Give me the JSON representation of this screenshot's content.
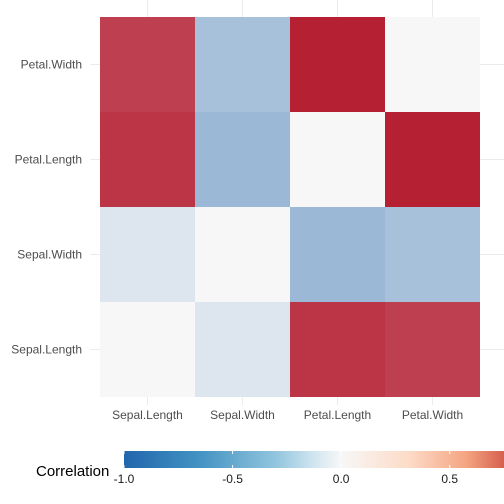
{
  "chart_data": {
    "type": "heatmap",
    "x_categories": [
      "Sepal.Length",
      "Sepal.Width",
      "Petal.Length",
      "Petal.Width"
    ],
    "y_categories": [
      "Sepal.Length",
      "Sepal.Width",
      "Petal.Length",
      "Petal.Width"
    ],
    "matrix": [
      [
        0.0,
        -0.12,
        0.87,
        0.82
      ],
      [
        -0.12,
        0.0,
        -0.43,
        -0.37
      ],
      [
        0.87,
        -0.43,
        0.0,
        0.96
      ],
      [
        0.82,
        -0.37,
        0.96,
        0.0
      ]
    ],
    "legend": {
      "title": "Correlation",
      "placement": "bottom",
      "ticks": [
        {
          "value": -1.0,
          "label": "-1.0"
        },
        {
          "value": -0.5,
          "label": "-0.5"
        },
        {
          "value": 0.0,
          "label": "0.0"
        },
        {
          "value": 0.5,
          "label": "0.5"
        }
      ],
      "range": [
        -1,
        0.75
      ]
    },
    "colors": {
      "negative": "#2166ac",
      "neutral": "#f7f7f7",
      "positive": "#b2182b",
      "grid": "#ebebeb",
      "text": "#4d4d4d"
    },
    "grid": true
  }
}
